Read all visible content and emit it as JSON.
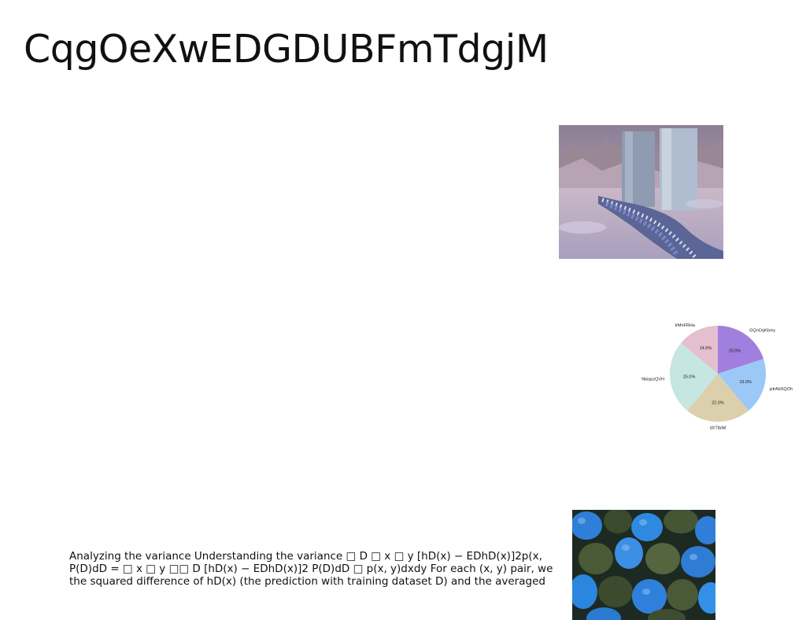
{
  "slide": {
    "title": "CqgOeXwEDGDUBFmTdgjM",
    "body_lines": [
      "Analyzing the variance Understanding the variance □ D □ x □ y [hD(x) − EDhD(x)]2p(x,",
      "P(D)dD = □ x □ y □□ D [hD(x) − EDhD(x)]2 P(D)dD □ p(x, y)dxdy For each (x, y) pair, we",
      "the squared difference of hD(x) (the prediction with training dataset D) and the averaged"
    ]
  },
  "images": {
    "photo_top": "landscape with stone pillars and flowers",
    "photo_bottom": "blue and green pumpkins"
  },
  "chart_data": {
    "type": "pie",
    "labels": [
      "GQnOqKbmy",
      "jztrAbSQOh",
      "dXTtbIM",
      "NkiapzQVH",
      "IrMnFRHa"
    ],
    "values": [
      20.0,
      19.0,
      22.0,
      25.0,
      14.0
    ],
    "value_labels": [
      "20.0%",
      "19.0%",
      "22.0%",
      "25.0%",
      "14.0%"
    ],
    "colors": [
      "#a07fdf",
      "#9cc8f6",
      "#dccfab",
      "#c5e6e1",
      "#e4bfcd"
    ],
    "start_angle_deg": 90,
    "direction": "clockwise"
  }
}
